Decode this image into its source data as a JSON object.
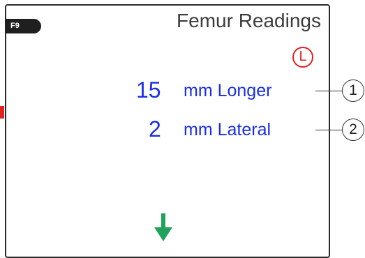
{
  "panel": {
    "function_key": "F9",
    "title": "Femur Readings",
    "side_indicator": "L"
  },
  "readings": [
    {
      "value": "15",
      "label": "mm Longer",
      "callout": "1"
    },
    {
      "value": "2",
      "label": "mm Lateral",
      "callout": "2"
    }
  ],
  "icons": {
    "scroll_down": "arrow-down-icon"
  },
  "colors": {
    "reading_text": "#1a2ee6",
    "side_indicator": "#e02222",
    "arrow": "#1fa35a",
    "function_key_bg": "#1f1f1f"
  }
}
